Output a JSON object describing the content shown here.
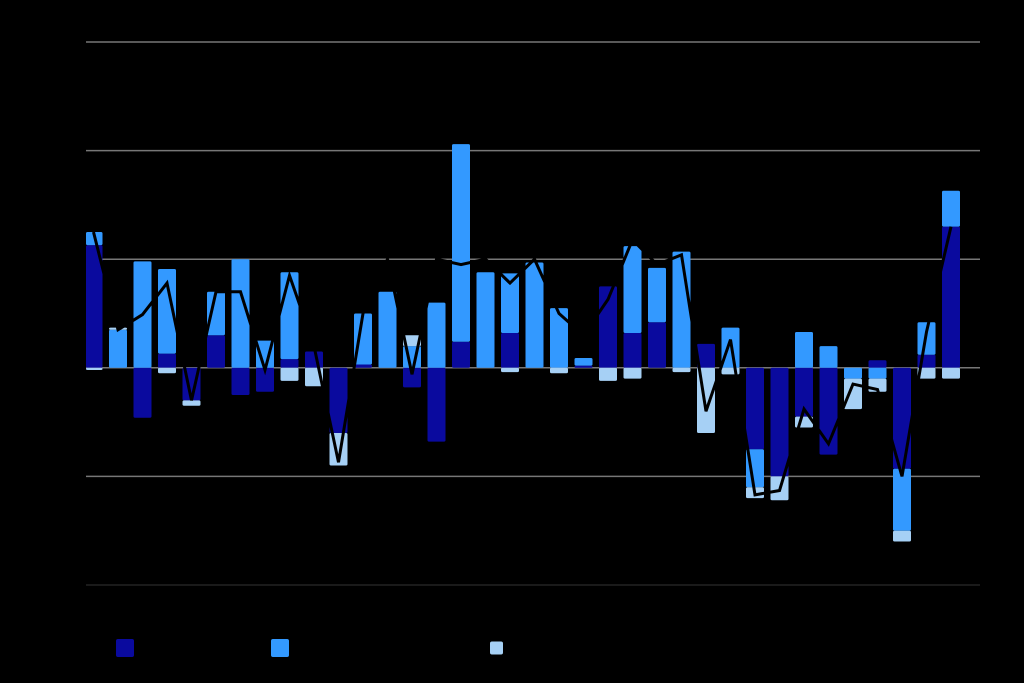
{
  "chart_data": {
    "type": "stacked-bar-line",
    "categories": [
      null,
      null,
      null,
      null,
      null,
      null,
      null,
      null,
      null,
      null,
      null,
      null,
      null,
      null,
      null,
      null,
      null,
      null,
      null,
      null,
      null,
      null,
      null,
      null,
      null,
      null,
      null,
      null,
      null,
      null,
      null,
      null,
      null,
      null,
      null,
      null
    ],
    "series": [
      {
        "color": "#0a0a9e",
        "values": [
          1.13,
          0,
          -0.46,
          0.13,
          -0.3,
          0.3,
          -0.25,
          -0.22,
          0.08,
          0.15,
          -0.6,
          0.03,
          0,
          -0.18,
          -0.68,
          0.24,
          0,
          0.32,
          0,
          0,
          0.02,
          0.75,
          0.32,
          0.42,
          0,
          0.22,
          0,
          -0.75,
          -1.0,
          -0.45,
          -0.8,
          0,
          0.07,
          -0.93,
          0.12,
          1.3
        ]
      },
      {
        "color": "#3399ff",
        "values": [
          0.12,
          0.35,
          0.98,
          0.78,
          0,
          0.4,
          1.0,
          0.25,
          0.8,
          0,
          0,
          0.47,
          0.7,
          0.2,
          0.6,
          1.82,
          0.88,
          0.55,
          0.97,
          0.55,
          0.07,
          0,
          0.8,
          0.5,
          1.07,
          0,
          0.37,
          -0.35,
          0,
          0.33,
          0.2,
          -0.1,
          -0.1,
          -0.57,
          0.3,
          0.33
        ]
      },
      {
        "color": "#a6d0f5",
        "values": [
          -0.02,
          0.02,
          0,
          -0.05,
          -0.05,
          0,
          0,
          0,
          -0.12,
          -0.17,
          -0.3,
          0,
          0,
          0.1,
          0,
          0,
          0,
          -0.04,
          0,
          -0.05,
          0,
          -0.12,
          -0.1,
          0,
          -0.04,
          -0.6,
          -0.06,
          -0.1,
          -0.22,
          -0.1,
          0,
          -0.28,
          -0.12,
          -0.1,
          -0.1,
          -0.1
        ]
      },
      {
        "type": "line",
        "color": "#000000",
        "values": [
          1.25,
          0.35,
          0.49,
          0.78,
          -0.3,
          0.7,
          0.7,
          -0.02,
          0.85,
          0.2,
          -0.87,
          0.5,
          1.0,
          -0.06,
          1.0,
          0.95,
          1.0,
          0.78,
          1.0,
          0.5,
          0.3,
          0.63,
          1.18,
          0.95,
          1.04,
          -0.4,
          0.26,
          -1.17,
          -1.13,
          -0.38,
          -0.7,
          -0.15,
          -0.2,
          -1.0,
          0.33,
          1.3
        ]
      }
    ],
    "ylim": [
      -2,
      3
    ],
    "yticks": [
      -2,
      -1,
      0,
      1,
      2,
      3
    ],
    "grid": true
  }
}
